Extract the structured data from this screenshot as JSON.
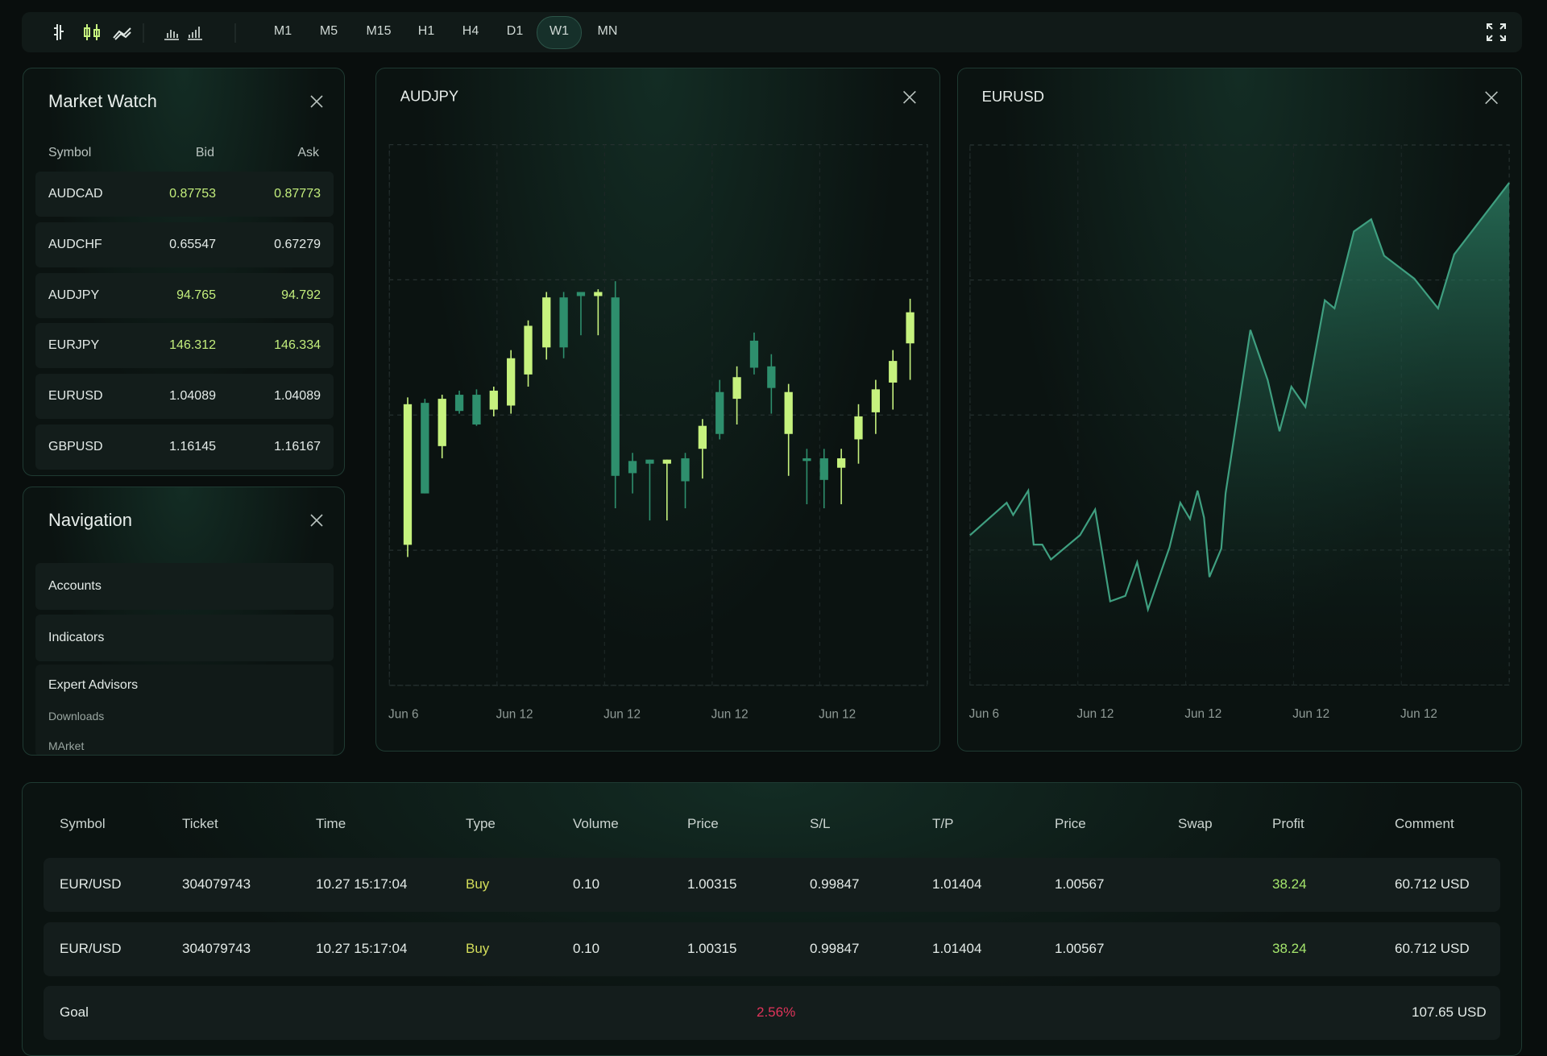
{
  "toolbar": {
    "timeframes": [
      "M1",
      "M5",
      "M15",
      "H1",
      "H4",
      "D1",
      "W1",
      "MN"
    ],
    "active": "W1"
  },
  "market_watch": {
    "title": "Market Watch",
    "columns": [
      "Symbol",
      "Bid",
      "Ask"
    ],
    "rows": [
      [
        "AUDCAD",
        "0.87753",
        "0.87773"
      ],
      [
        "AUDCHF",
        "0.65547",
        "0.67279"
      ],
      [
        "AUDJPY",
        "94.765",
        "94.792"
      ],
      [
        "EURJPY",
        "146.312",
        "146.334"
      ],
      [
        "EURUSD",
        "1.04089",
        "1.04089"
      ],
      [
        "GBPUSD",
        "1.16145",
        "1.16167"
      ]
    ],
    "row_colors": [
      "#c3ee7c",
      "#e4ebe8",
      "#c3ee7c",
      "#c3ee7c",
      "#e4ebe8",
      "#e4ebe8"
    ]
  },
  "navigation": {
    "title": "Navigation",
    "items": [
      "Accounts",
      "Indicators"
    ],
    "expert_advisors": {
      "title": "Expert Advisors",
      "items": [
        "Downloads",
        "MArket"
      ]
    }
  },
  "chart_data": [
    {
      "type": "candlestick",
      "title": "AUDJPY",
      "up_color": "#c6f27e",
      "down_color": "#2e8f6d",
      "x": [
        0.17,
        0.33,
        0.49,
        0.65,
        0.81,
        0.97,
        1.13,
        1.29,
        1.46,
        1.62,
        1.78,
        1.94,
        2.1,
        2.26,
        2.42,
        2.58,
        2.75,
        2.91,
        3.07,
        3.23,
        3.39,
        3.55,
        3.71,
        3.88,
        4.04,
        4.2,
        4.36,
        4.52,
        4.68,
        4.84
      ],
      "open": [
        1.04,
        2.09,
        1.77,
        2.15,
        2.15,
        2.04,
        2.07,
        2.3,
        2.5,
        2.87,
        2.91,
        2.88,
        2.87,
        1.66,
        1.67,
        1.64,
        1.68,
        1.75,
        2.17,
        2.12,
        2.55,
        2.36,
        1.86,
        1.68,
        1.68,
        1.61,
        1.82,
        2.02,
        2.24,
        2.53
      ],
      "high": [
        2.13,
        2.12,
        2.15,
        2.18,
        2.19,
        2.21,
        2.48,
        2.7,
        2.91,
        2.91,
        2.91,
        2.93,
        2.99,
        1.72,
        1.67,
        1.67,
        1.72,
        1.97,
        2.26,
        2.36,
        2.61,
        2.45,
        2.23,
        1.75,
        1.75,
        1.75,
        2.08,
        2.26,
        2.48,
        2.86
      ],
      "low": [
        0.95,
        1.42,
        1.68,
        2.01,
        1.92,
        1.99,
        2.01,
        2.21,
        2.41,
        2.42,
        2.59,
        2.59,
        1.31,
        1.42,
        1.22,
        1.22,
        1.31,
        1.53,
        1.82,
        1.93,
        2.3,
        2.01,
        1.55,
        1.34,
        1.31,
        1.34,
        1.64,
        1.86,
        2.04,
        2.26
      ],
      "close": [
        2.08,
        1.42,
        2.12,
        2.03,
        1.93,
        2.18,
        2.42,
        2.66,
        2.87,
        2.5,
        2.88,
        2.91,
        1.55,
        1.57,
        1.64,
        1.67,
        1.51,
        1.92,
        1.86,
        2.28,
        2.35,
        2.2,
        2.17,
        1.66,
        1.52,
        1.68,
        1.99,
        2.19,
        2.4,
        2.76
      ],
      "xlim": [
        0,
        5
      ],
      "xticks": [
        {
          "value": 0,
          "label": "Jun 6"
        },
        {
          "value": 1,
          "label": "Jun 12"
        },
        {
          "value": 2,
          "label": "Jun 12"
        },
        {
          "value": 3,
          "label": "Jun 12"
        },
        {
          "value": 4,
          "label": "Jun 12"
        }
      ],
      "ylim": [
        0,
        4
      ],
      "yticks": [
        0,
        1,
        2,
        3,
        4
      ],
      "grid": true
    },
    {
      "type": "area",
      "title": "EURUSD",
      "color": "#3f9f80",
      "x": [
        0,
        0.34,
        0.4,
        0.54,
        0.59,
        0.67,
        0.75,
        1.02,
        1.16,
        1.3,
        1.44,
        1.55,
        1.65,
        1.85,
        1.95,
        2.04,
        2.11,
        2.17,
        2.22,
        2.33,
        2.37,
        2.6,
        2.76,
        2.87,
        2.98,
        3.11,
        3.29,
        3.38,
        3.56,
        3.72,
        3.84,
        4.12,
        4.34,
        4.49,
        5.0
      ],
      "values": [
        1.11,
        1.35,
        1.26,
        1.44,
        1.04,
        1.04,
        0.93,
        1.11,
        1.3,
        0.62,
        0.66,
        0.91,
        0.56,
        1.02,
        1.35,
        1.23,
        1.44,
        1.24,
        0.8,
        1.01,
        1.42,
        2.63,
        2.26,
        1.88,
        2.21,
        2.06,
        2.85,
        2.79,
        3.36,
        3.45,
        3.18,
        3.01,
        2.79,
        3.19,
        3.72
      ],
      "xlim": [
        0,
        5
      ],
      "xticks": [
        {
          "value": 0,
          "label": "Jun 6"
        },
        {
          "value": 1,
          "label": "Jun 12"
        },
        {
          "value": 2,
          "label": "Jun 12"
        },
        {
          "value": 3,
          "label": "Jun 12"
        },
        {
          "value": 4,
          "label": "Jun 12"
        }
      ],
      "ylim": [
        0,
        4
      ],
      "yticks": [
        0,
        1,
        2,
        3,
        4
      ],
      "grid": true
    }
  ],
  "trade_table": {
    "columns": [
      "Symbol",
      "Ticket",
      "Time",
      "Type",
      "Volume",
      "Price",
      "S/L",
      "T/P",
      "Price",
      "Swap",
      "Profit",
      "Comment"
    ],
    "rows": [
      [
        "EUR/USD",
        "304079743",
        "10.27 15:17:04",
        "Buy",
        "0.10",
        "1.00315",
        "0.99847",
        "1.01404",
        "1.00567",
        null,
        "38.24",
        "60.712 USD"
      ],
      [
        "EUR/USD",
        "304079743",
        "10.27 15:17:04",
        "Buy",
        "0.10",
        "1.00315",
        "0.99847",
        "1.01404",
        "1.00567",
        null,
        "38.24",
        "60.712 USD"
      ]
    ],
    "footer": {
      "label": "Goal",
      "change": "2.56%",
      "total": "107.65 USD"
    }
  }
}
